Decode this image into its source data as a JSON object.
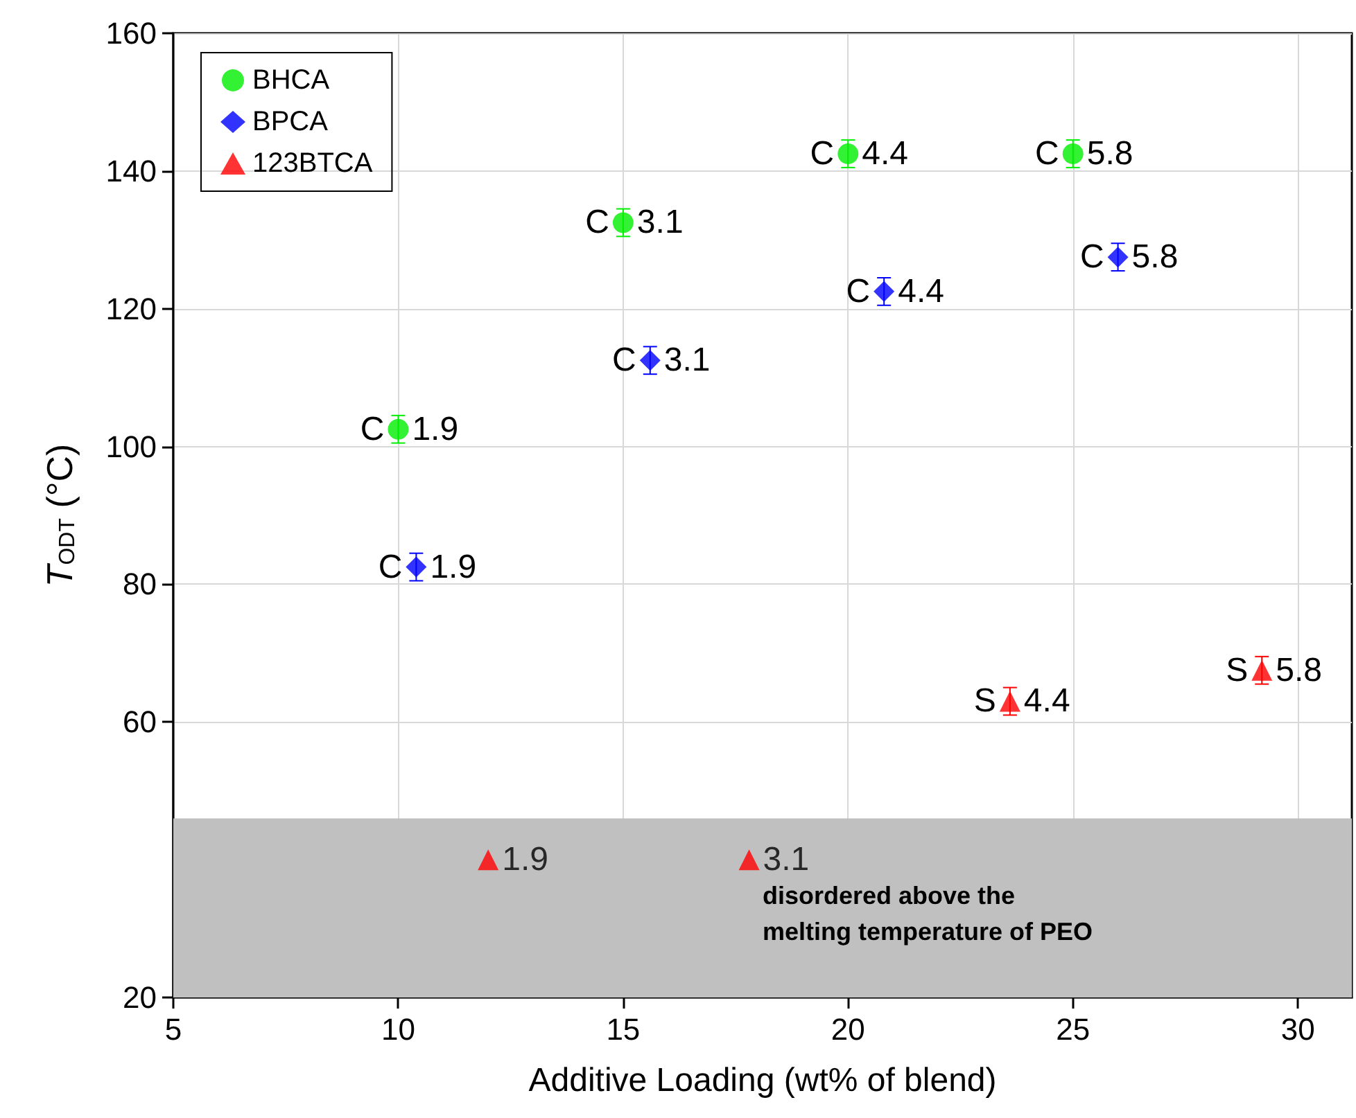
{
  "chart_data": {
    "type": "scatter",
    "ylabel": "T$_{ODT}$ (°C)",
    "xlabel": "Additive Loading (wt% of blend)",
    "xlim": [
      5,
      31.2
    ],
    "xticks": [
      5,
      10,
      15,
      20,
      25,
      30
    ],
    "ylim": [
      20,
      160
    ],
    "yticks": [
      20,
      60,
      80,
      100,
      120,
      140,
      160
    ],
    "grid": true,
    "legend": "top left",
    "bands": [
      {
        "axis": "y",
        "from": 20,
        "to": 46,
        "color": "#c0c0c0",
        "label": "disordered above the\nmelting temperature of PEO"
      }
    ],
    "annotations": [
      {
        "text": "1.9",
        "x": 12,
        "y": 40
      },
      {
        "text": "3.1",
        "x": 17.8,
        "y": 40
      }
    ],
    "series": [
      {
        "name": "BHCA",
        "color": "#00ee00",
        "marker": "circle",
        "x": [
          10,
          15,
          20,
          25
        ],
        "values": [
          102.5,
          132.5,
          142.5,
          142.5
        ],
        "errors": [
          2,
          2,
          2,
          2
        ],
        "value_labels": [
          "C 1.9",
          "C 3.1",
          "C 4.4",
          "C 5.8"
        ]
      },
      {
        "name": "BPCA",
        "color": "#0000ff",
        "marker": "diamond",
        "x": [
          10.4,
          15.6,
          20.8,
          26.0
        ],
        "values": [
          82.5,
          112.5,
          122.5,
          127.5
        ],
        "errors": [
          2,
          2,
          2,
          2
        ],
        "value_labels": [
          "C 1.9",
          "C 3.1",
          "C 4.4",
          "C 5.8"
        ]
      },
      {
        "name": "123BTCA",
        "color": "#ff0000",
        "marker": "triangle",
        "x": [
          23.6,
          29.2,
          12,
          17.8
        ],
        "values": [
          63,
          67.5,
          40,
          40
        ],
        "errors": [
          2,
          2,
          null,
          null
        ],
        "value_labels": [
          "S 4.4",
          "S 5.8",
          null,
          null
        ]
      }
    ]
  }
}
